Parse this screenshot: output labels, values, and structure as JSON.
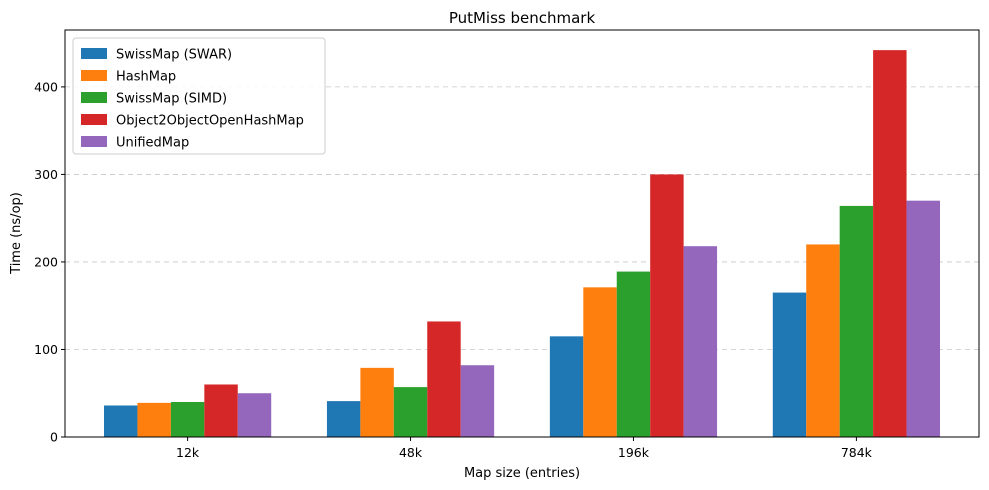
{
  "chart_data": {
    "type": "bar",
    "title": "PutMiss benchmark",
    "xlabel": "Map size (entries)",
    "ylabel": "Time (ns/op)",
    "categories": [
      "12k",
      "48k",
      "196k",
      "784k"
    ],
    "ylim": [
      0,
      465
    ],
    "yticks": [
      0,
      100,
      200,
      300,
      400
    ],
    "grid": "y-dashed",
    "legend_position": "top-left",
    "series": [
      {
        "name": "SwissMap (SWAR)",
        "color": "#1f77b4",
        "values": [
          36,
          41,
          115,
          165
        ]
      },
      {
        "name": "HashMap",
        "color": "#ff7f0e",
        "values": [
          39,
          79,
          171,
          220
        ]
      },
      {
        "name": "SwissMap (SIMD)",
        "color": "#2ca02c",
        "values": [
          40,
          57,
          189,
          264
        ]
      },
      {
        "name": "Object2ObjectOpenHashMap",
        "color": "#d62728",
        "values": [
          60,
          132,
          300,
          442
        ]
      },
      {
        "name": "UnifiedMap",
        "color": "#9467bd",
        "values": [
          50,
          82,
          218,
          270
        ]
      }
    ]
  }
}
